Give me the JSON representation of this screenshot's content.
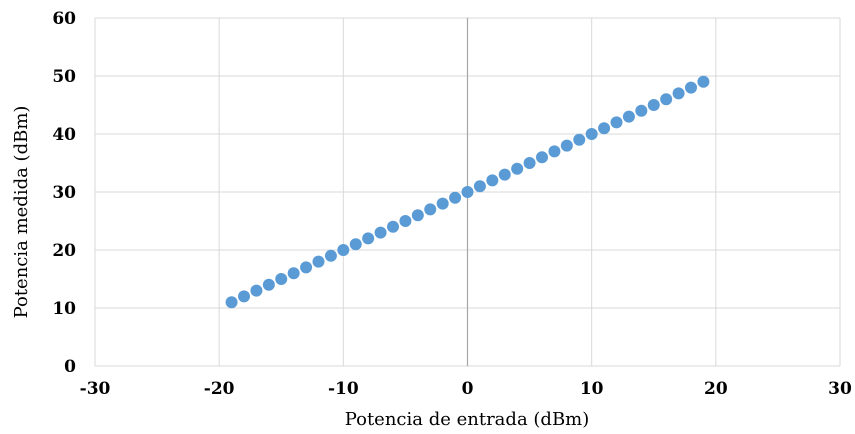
{
  "chart_data": {
    "type": "scatter",
    "title": "",
    "xlabel": "Potencia de entrada (dBm)",
    "ylabel": "Potencia medida (dBm)",
    "xlim": [
      -30,
      30
    ],
    "ylim": [
      0,
      60
    ],
    "xticks": [
      -30,
      -20,
      -10,
      0,
      10,
      20,
      30
    ],
    "yticks": [
      0,
      10,
      20,
      30,
      40,
      50,
      60
    ],
    "grid": true,
    "legend": "none",
    "point_color": "#5b9bd5",
    "series": [
      {
        "x": [
          -19,
          -18,
          -17,
          -16,
          -15,
          -14,
          -13,
          -12,
          -11,
          -10,
          -9,
          -8,
          -7,
          -6,
          -5,
          -4,
          -3,
          -2,
          -1,
          0,
          1,
          2,
          3,
          4,
          5,
          6,
          7,
          8,
          9,
          10,
          11,
          12,
          13,
          14,
          15,
          16,
          17,
          18,
          19
        ],
        "y": [
          11,
          12,
          13,
          14,
          15,
          16,
          17,
          18,
          19,
          20,
          21,
          22,
          23,
          24,
          25,
          26,
          27,
          28,
          29,
          30,
          31,
          32,
          33,
          34,
          35,
          36,
          37,
          38,
          39,
          40,
          41,
          42,
          43,
          44,
          45,
          46,
          47,
          48,
          49
        ]
      }
    ]
  }
}
